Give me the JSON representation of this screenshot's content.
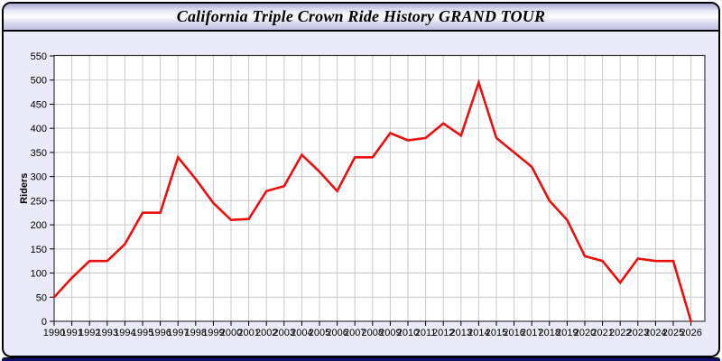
{
  "window": {
    "title": "California Triple Crown Ride History GRAND TOUR"
  },
  "colors": {
    "page_bg": "#ffffff",
    "panel_bg": "#eaeaf8",
    "border": "#000000",
    "bottom_bar": "#10106a",
    "plot_bg": "#ffffff",
    "plot_border": "#3a3a3a",
    "grid": "#c9c9c9",
    "line": "#ea0e0e",
    "text": "#000000"
  },
  "chart_data": {
    "type": "line",
    "title": "California Triple Crown Ride History GRAND TOUR",
    "xlabel": "",
    "ylabel": "Riders",
    "x": [
      1990,
      1991,
      1992,
      1993,
      1994,
      1995,
      1996,
      1997,
      1998,
      1999,
      2000,
      2001,
      2002,
      2003,
      2004,
      2005,
      2006,
      2007,
      2008,
      2009,
      2010,
      2011,
      2012,
      2013,
      2014,
      2015,
      2016,
      2017,
      2018,
      2019,
      2020,
      2021,
      2022,
      2023,
      2024,
      2025,
      2026
    ],
    "values": [
      50,
      90,
      125,
      125,
      160,
      225,
      225,
      340,
      295,
      245,
      210,
      212,
      270,
      280,
      345,
      310,
      270,
      340,
      340,
      390,
      375,
      380,
      410,
      385,
      495,
      380,
      350,
      320,
      250,
      210,
      135,
      125,
      80,
      130,
      125,
      125,
      0
    ],
    "ylim": [
      0,
      550
    ],
    "ytick_step": 50,
    "grid": true,
    "legend": "none",
    "series_name": "Riders"
  }
}
